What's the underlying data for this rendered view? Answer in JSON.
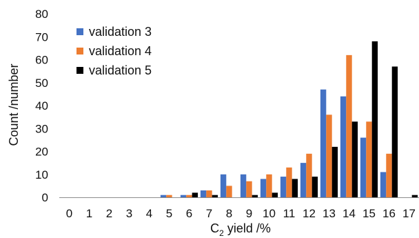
{
  "chart_data": {
    "type": "bar",
    "title": "",
    "xlabel_main": "C",
    "xlabel_sub": "2",
    "xlabel_rest": " yield /%",
    "ylabel": "Count /number",
    "ylim": [
      0,
      80
    ],
    "yticks": [
      0,
      10,
      20,
      30,
      40,
      50,
      60,
      70,
      80
    ],
    "categories": [
      "0",
      "1",
      "2",
      "3",
      "4",
      "5",
      "6",
      "7",
      "8",
      "9",
      "10",
      "11",
      "12",
      "13",
      "14",
      "15",
      "16",
      "17"
    ],
    "series": [
      {
        "name": "validation 3",
        "color": "#4472C4",
        "values": [
          0,
          0,
          0,
          0,
          0,
          1,
          1,
          3,
          10,
          10,
          8,
          9,
          15,
          47,
          44,
          26,
          11,
          0
        ]
      },
      {
        "name": "validation 4",
        "color": "#ED7D31",
        "values": [
          0,
          0,
          0,
          0,
          0,
          1,
          1,
          3,
          5,
          7,
          10,
          13,
          19,
          36,
          62,
          33,
          19,
          0
        ]
      },
      {
        "name": "validation 5",
        "color": "#000000",
        "values": [
          0,
          0,
          0,
          0,
          0,
          0,
          2,
          1,
          0,
          1,
          2,
          8,
          9,
          22,
          33,
          68,
          57,
          1
        ]
      }
    ],
    "grid": false,
    "legend_position": "top-left"
  }
}
